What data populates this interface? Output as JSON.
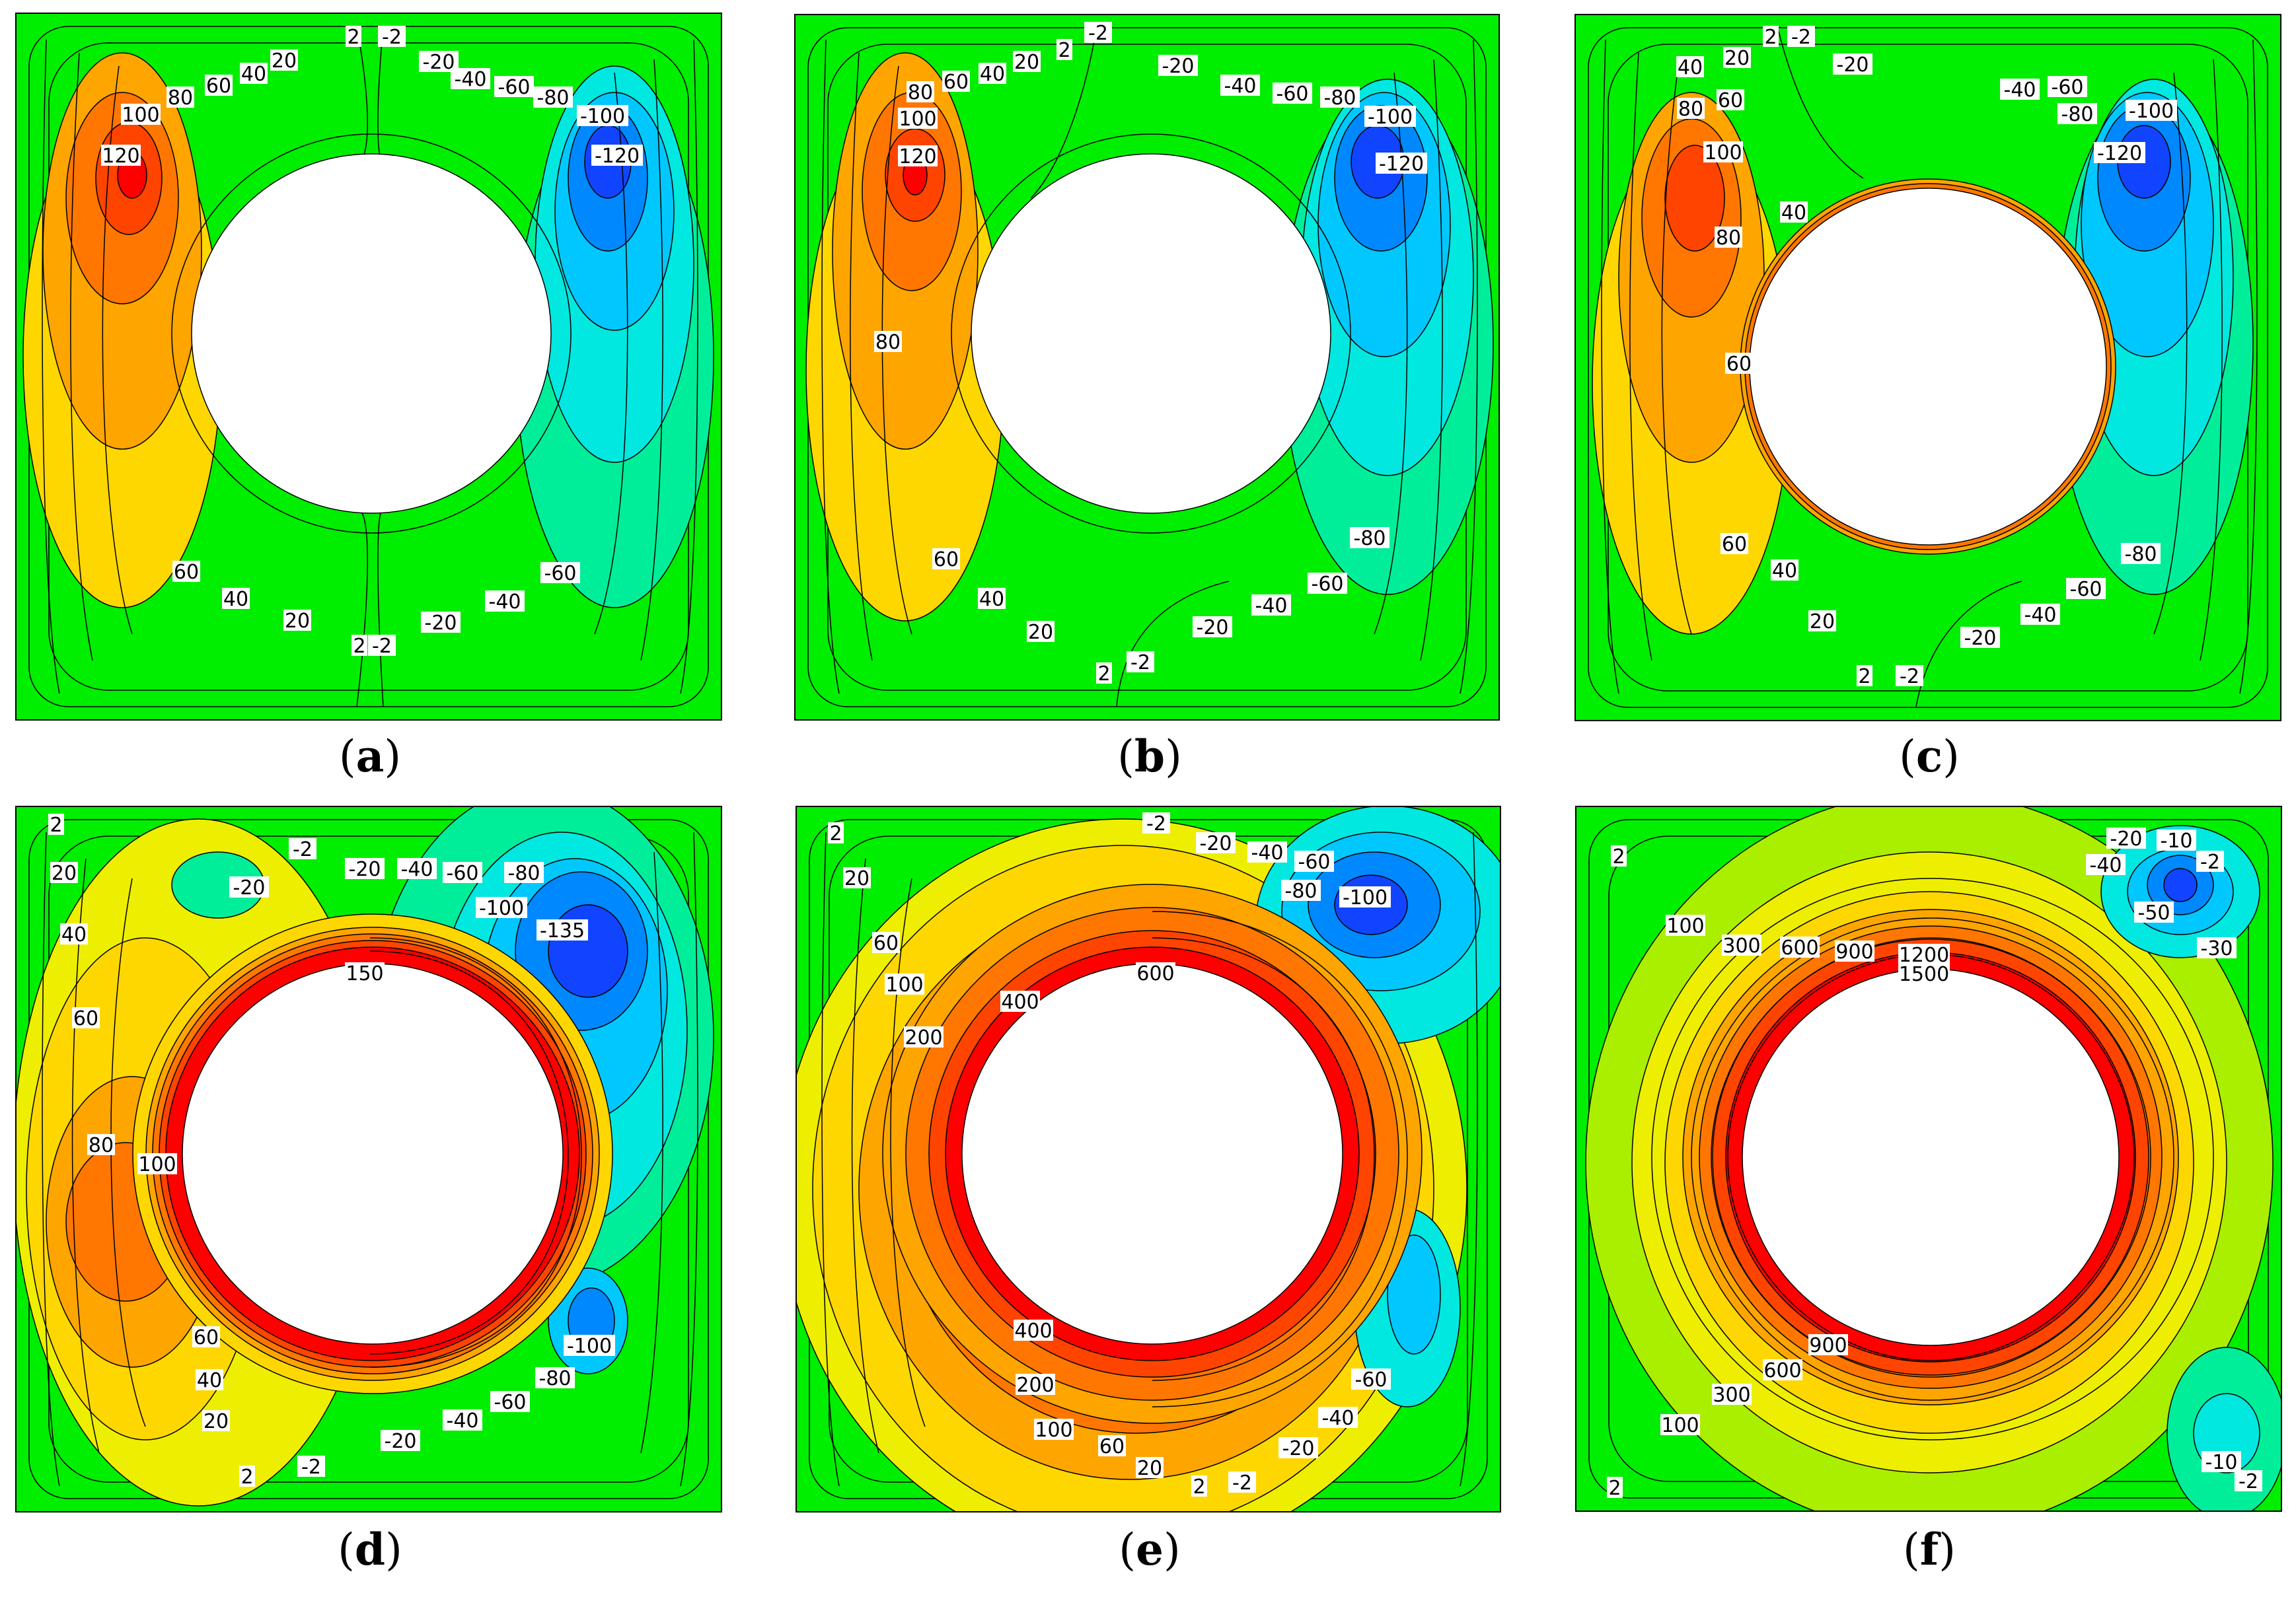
{
  "figure": {
    "background": "#ffffff",
    "color_scale_negative_to_positive": [
      "#0000ee",
      "#1144ff",
      "#0088ff",
      "#00c8ff",
      "#00e8e0",
      "#00ee99",
      "#33ee33",
      "#00ee00",
      "#66ee00",
      "#aaee00",
      "#eeee00",
      "#ffd700",
      "#ffa500",
      "#ff7700",
      "#ff4400",
      "#ff0000"
    ]
  },
  "chart_data": [
    {
      "type": "contour",
      "panel": "a",
      "caption": "(a)",
      "caption_letter": "a",
      "inner_obstacle": "circle",
      "contour_levels": [
        -120,
        -100,
        -80,
        -60,
        -40,
        -20,
        -2,
        2,
        20,
        40,
        60,
        80,
        100,
        120
      ],
      "contour_labels": [
        "2",
        "-2",
        "20",
        "40",
        "60",
        "80",
        "100",
        "120",
        "-20",
        "-40",
        "-60",
        "-80",
        "-100",
        "-120",
        "60",
        "40",
        "20",
        "2",
        "-2",
        "-20",
        "-40",
        "-60"
      ]
    },
    {
      "type": "contour",
      "panel": "b",
      "caption": "(b)",
      "caption_letter": "b",
      "inner_obstacle": "circle",
      "contour_levels": [
        -120,
        -100,
        -80,
        -60,
        -40,
        -20,
        -2,
        2,
        20,
        40,
        60,
        80,
        100,
        120
      ],
      "contour_labels": [
        "-2",
        "2",
        "20",
        "40",
        "60",
        "80",
        "100",
        "120",
        "-20",
        "-40",
        "-60",
        "-80",
        "-100",
        "-120",
        "80",
        "60",
        "40",
        "20",
        "2",
        "-2",
        "-20",
        "-40",
        "-60",
        "-80"
      ]
    },
    {
      "type": "contour",
      "panel": "c",
      "caption": "(c)",
      "caption_letter": "c",
      "inner_obstacle": "circle",
      "contour_levels": [
        -120,
        -100,
        -80,
        -60,
        -40,
        -20,
        -2,
        2,
        20,
        40,
        60,
        80,
        100
      ],
      "contour_labels": [
        "2",
        "-2",
        "20",
        "40",
        "-20",
        "80",
        "60",
        "100",
        "-40",
        "-60",
        "-80",
        "-100",
        "-120",
        "40",
        "80",
        "60",
        "60",
        "40",
        "20",
        "2",
        "-2",
        "-20",
        "-40",
        "-60",
        "-80"
      ]
    },
    {
      "type": "contour",
      "panel": "d",
      "caption": "(d)",
      "caption_letter": "d",
      "inner_obstacle": "circle",
      "contour_levels": [
        -135,
        -100,
        -80,
        -60,
        -40,
        -20,
        -2,
        2,
        20,
        40,
        60,
        80,
        100,
        150
      ],
      "contour_labels": [
        "2",
        "-2",
        "20",
        "-20",
        "-20",
        "-40",
        "-60",
        "-80",
        "-100",
        "-135",
        "40",
        "150",
        "60",
        "80",
        "100",
        "60",
        "40",
        "20",
        "2",
        "-2",
        "-20",
        "-40",
        "-60",
        "-80",
        "-100"
      ]
    },
    {
      "type": "contour",
      "panel": "e",
      "caption": "(e)",
      "caption_letter": "e",
      "inner_obstacle": "circle",
      "contour_levels": [
        -100,
        -80,
        -60,
        -40,
        -20,
        -2,
        2,
        20,
        60,
        100,
        200,
        400,
        600
      ],
      "contour_labels": [
        "2",
        "-2",
        "-20",
        "-40",
        "-60",
        "20",
        "-80",
        "-100",
        "60",
        "100",
        "600",
        "400",
        "200",
        "400",
        "200",
        "100",
        "60",
        "20",
        "2",
        "-2",
        "-20",
        "-40",
        "-60"
      ]
    },
    {
      "type": "contour",
      "panel": "f",
      "caption": "(f)",
      "caption_letter": "f",
      "inner_obstacle": "circle",
      "contour_levels": [
        -50,
        -40,
        -30,
        -20,
        -10,
        -2,
        2,
        100,
        300,
        600,
        900,
        1200,
        1500
      ],
      "contour_labels": [
        "2",
        "-20",
        "-10",
        "-2",
        "-40",
        "-50",
        "-30",
        "100",
        "300",
        "600",
        "900",
        "1200",
        "1500",
        "900",
        "600",
        "300",
        "100",
        "-10",
        "-2",
        "2"
      ]
    }
  ]
}
